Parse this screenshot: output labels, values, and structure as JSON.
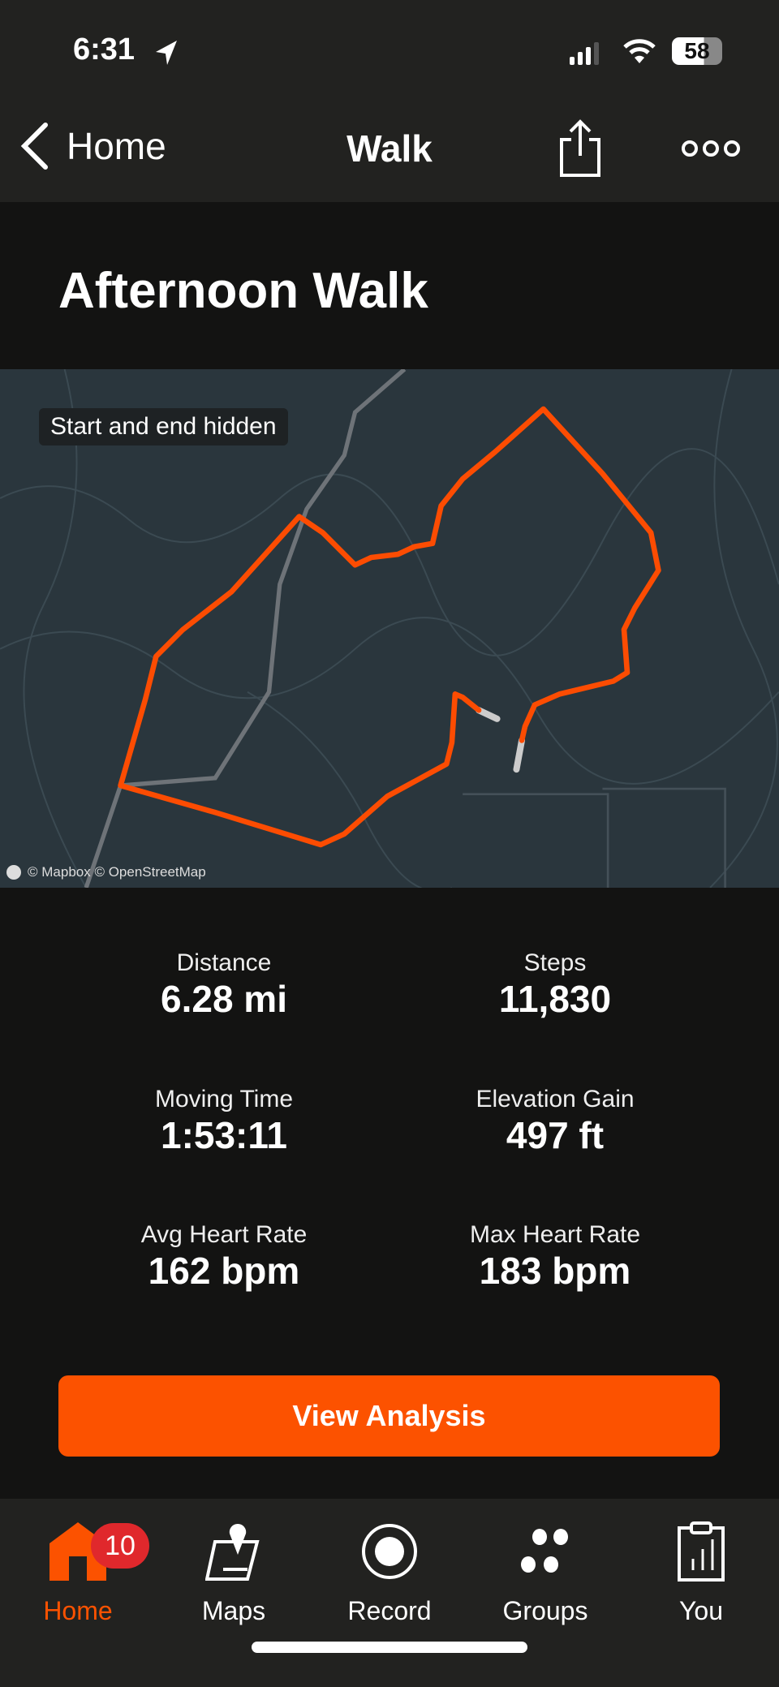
{
  "status_bar": {
    "time": "6:31",
    "battery": "58"
  },
  "nav": {
    "back_label": "Home",
    "title": "Walk"
  },
  "activity": {
    "title": "Afternoon Walk"
  },
  "map": {
    "privacy_chip": "Start and end hidden",
    "attribution": "© Mapbox © OpenStreetMap",
    "route_color": "#fc4c02"
  },
  "stats": [
    {
      "label": "Distance",
      "value": "6.28 mi"
    },
    {
      "label": "Steps",
      "value": "11,830"
    },
    {
      "label": "Moving Time",
      "value": "1:53:11"
    },
    {
      "label": "Elevation Gain",
      "value": "497 ft"
    },
    {
      "label": "Avg Heart Rate",
      "value": "162 bpm"
    },
    {
      "label": "Max Heart Rate",
      "value": "183 bpm"
    }
  ],
  "button": {
    "label": "View Analysis",
    "color": "#fc5200"
  },
  "tabs": [
    {
      "label": "Home",
      "icon": "home-icon",
      "active": true,
      "badge": "10"
    },
    {
      "label": "Maps",
      "icon": "maps-icon"
    },
    {
      "label": "Record",
      "icon": "record-icon"
    },
    {
      "label": "Groups",
      "icon": "groups-icon"
    },
    {
      "label": "You",
      "icon": "clipboard-chart-icon"
    }
  ]
}
